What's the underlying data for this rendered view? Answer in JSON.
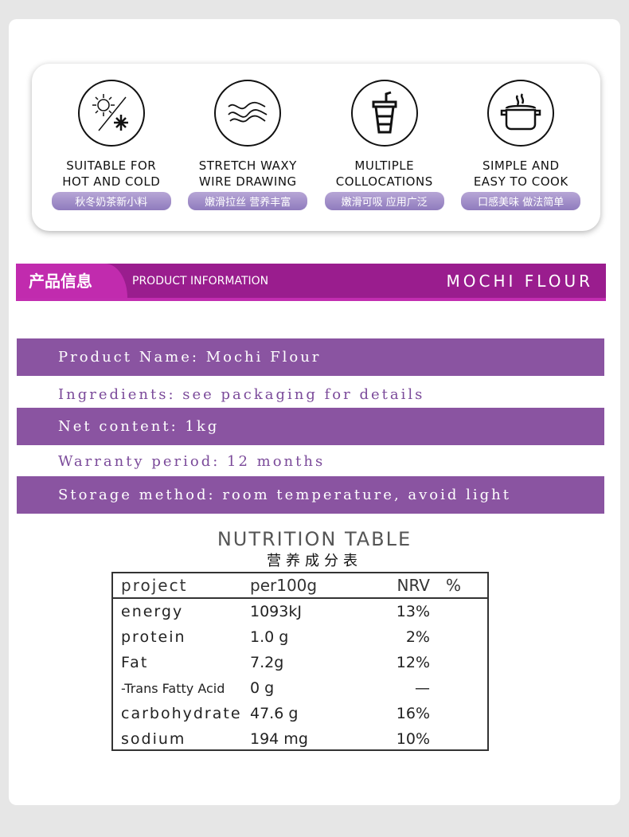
{
  "features": [
    {
      "icon": "sun-snowflake-icon",
      "line1": "SUITABLE FOR",
      "line2": "HOT AND COLD",
      "tag": "秋冬奶茶新小料"
    },
    {
      "icon": "waves-icon",
      "line1": "STRETCH WAXY",
      "line2": "WIRE DRAWING",
      "tag": "嫩滑拉丝 营养丰富"
    },
    {
      "icon": "drink-cup-icon",
      "line1": "MULTIPLE",
      "line2": "COLLOCATIONS",
      "tag": "嫩滑可吸 应用广泛"
    },
    {
      "icon": "cooking-pot-icon",
      "line1": "SIMPLE AND",
      "line2": "EASY TO COOK",
      "tag": "口感美味 做法简单"
    }
  ],
  "section": {
    "cn": "产品信息",
    "en": "PRODUCT INFORMATION",
    "product": "MOCHI FLOUR"
  },
  "info": [
    "Product Name: Mochi Flour",
    "Ingredients: see packaging for details",
    "Net content: 1kg",
    "Warranty period: 12 months",
    "Storage method: room temperature, avoid light"
  ],
  "nutrition": {
    "title_en": "NUTRITION TABLE",
    "title_cn": "营养成分表",
    "headers": [
      "project",
      "per100g",
      "NRV",
      "%"
    ],
    "rows": [
      [
        "energy",
        "1093kJ",
        "13%"
      ],
      [
        "protein",
        "1.0 g",
        "2%"
      ],
      [
        "Fat",
        "7.2g",
        "12%"
      ],
      [
        "-Trans Fatty Acid",
        "0 g",
        "—"
      ],
      [
        "carbohydrate",
        "47.6 g",
        "16%"
      ],
      [
        "sodium",
        "194 mg",
        "10%"
      ]
    ]
  },
  "colors": {
    "band": "#9a1d8e",
    "band_accent": "#c12bae",
    "info_bar": "#8a54a1",
    "info_text": "#7b4a9a"
  }
}
